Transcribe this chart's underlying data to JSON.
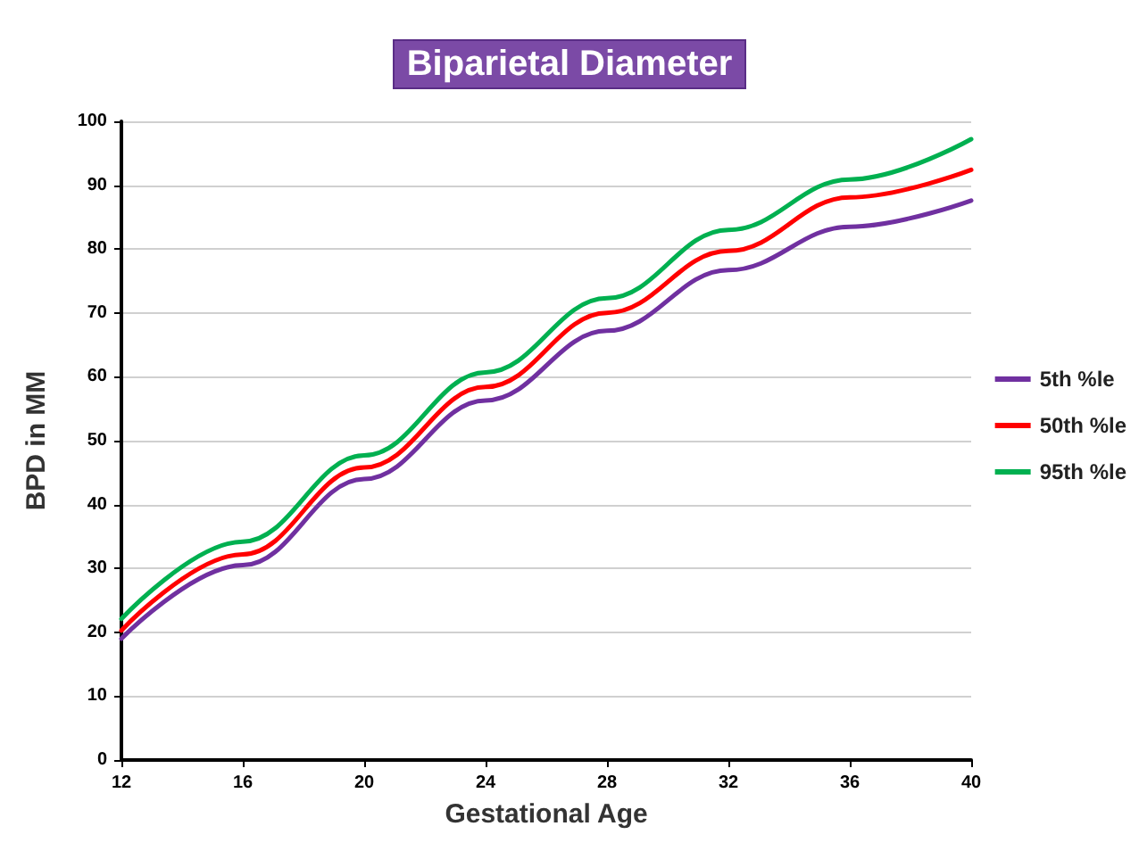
{
  "chart_data": {
    "type": "line",
    "title": "Biparietal Diameter",
    "xlabel": "Gestational Age",
    "ylabel": "BPD in MM",
    "x": [
      12,
      16,
      20,
      24,
      28,
      32,
      36,
      40
    ],
    "series": [
      {
        "name": "5th %le",
        "color": "#7030a0",
        "values": [
          19,
          30.5,
          44,
          56.3,
          67.2,
          76.7,
          83.5,
          87.6
        ]
      },
      {
        "name": "50th %le",
        "color": "#ff0000",
        "values": [
          20.3,
          32.2,
          45.8,
          58.4,
          70,
          79.7,
          88.1,
          92.4
        ]
      },
      {
        "name": "95th %le",
        "color": "#00b050",
        "values": [
          22.1,
          34.2,
          47.7,
          60.7,
          72.3,
          83,
          90.9,
          97.2
        ]
      }
    ],
    "xlim": [
      12,
      40
    ],
    "xticks": [
      12,
      16,
      20,
      24,
      28,
      32,
      36,
      40
    ],
    "ylim": [
      0,
      100
    ],
    "yticks": [
      0,
      10,
      20,
      30,
      40,
      50,
      60,
      70,
      80,
      90,
      100
    ],
    "grid": "y",
    "legend": "right",
    "marker": "none",
    "line_style": "solid"
  }
}
